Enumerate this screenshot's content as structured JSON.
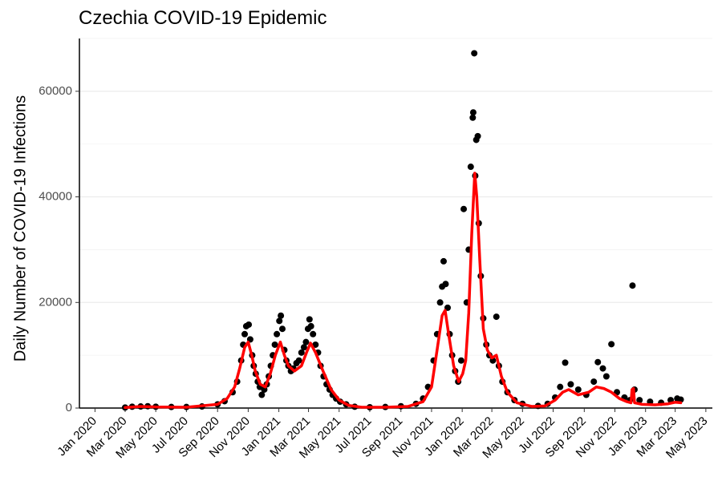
{
  "chart_data": {
    "type": "scatter",
    "title": "Czechia COVID-19 Epidemic",
    "xlabel": "",
    "ylabel": "Daily Number of COVID-19 Infections",
    "xlim": [
      "2019-12-01",
      "2023-05-14"
    ],
    "ylim": [
      0,
      70000
    ],
    "grid": "horizontal",
    "x_ticks": [
      "2020-01-01",
      "2020-03-01",
      "2020-05-01",
      "2020-07-01",
      "2020-09-01",
      "2020-11-01",
      "2021-01-01",
      "2021-03-01",
      "2021-05-01",
      "2021-07-01",
      "2021-09-01",
      "2021-11-01",
      "2022-01-01",
      "2022-03-01",
      "2022-05-01",
      "2022-07-01",
      "2022-09-01",
      "2022-11-01",
      "2023-01-01",
      "2023-03-01",
      "2023-05-01"
    ],
    "x_tick_labels": [
      "Jan 2020",
      "Mar 2020",
      "May 2020",
      "Jul 2020",
      "Sep 2020",
      "Nov 2020",
      "Jan 2021",
      "Mar 2021",
      "May 2021",
      "Jul 2021",
      "Sep 2021",
      "Nov 2021",
      "Jan 2022",
      "Mar 2022",
      "May 2022",
      "Jul 2022",
      "Sep 2022",
      "Nov 2022",
      "Jan 2023",
      "Mar 2023",
      "May 2023"
    ],
    "y_ticks": [
      0,
      20000,
      40000,
      60000
    ],
    "y_tick_labels": [
      "0",
      "20000",
      "40000",
      "60000"
    ],
    "series": [
      {
        "type": "scatter",
        "color": "#000000",
        "points": [
          [
            "2020-03-01",
            100
          ],
          [
            "2020-03-15",
            250
          ],
          [
            "2020-04-01",
            300
          ],
          [
            "2020-04-15",
            350
          ],
          [
            "2020-05-01",
            250
          ],
          [
            "2020-06-01",
            200
          ],
          [
            "2020-07-01",
            200
          ],
          [
            "2020-08-01",
            300
          ],
          [
            "2020-09-01",
            700
          ],
          [
            "2020-09-15",
            1300
          ],
          [
            "2020-10-01",
            3000
          ],
          [
            "2020-10-10",
            5000
          ],
          [
            "2020-10-18",
            9000
          ],
          [
            "2020-10-22",
            12000
          ],
          [
            "2020-10-25",
            14000
          ],
          [
            "2020-10-28",
            15500
          ],
          [
            "2020-11-02",
            15800
          ],
          [
            "2020-11-05",
            13000
          ],
          [
            "2020-11-09",
            10000
          ],
          [
            "2020-11-12",
            8000
          ],
          [
            "2020-11-16",
            6500
          ],
          [
            "2020-11-20",
            5000
          ],
          [
            "2020-11-24",
            4000
          ],
          [
            "2020-11-28",
            2500
          ],
          [
            "2020-12-03",
            3500
          ],
          [
            "2020-12-08",
            4500
          ],
          [
            "2020-12-12",
            6000
          ],
          [
            "2020-12-16",
            8000
          ],
          [
            "2020-12-20",
            10000
          ],
          [
            "2020-12-24",
            12000
          ],
          [
            "2020-12-28",
            14000
          ],
          [
            "2021-01-02",
            16500
          ],
          [
            "2021-01-05",
            17500
          ],
          [
            "2021-01-08",
            15000
          ],
          [
            "2021-01-12",
            11000
          ],
          [
            "2021-01-16",
            9000
          ],
          [
            "2021-01-20",
            8000
          ],
          [
            "2021-01-25",
            7000
          ],
          [
            "2021-01-30",
            7500
          ],
          [
            "2021-02-05",
            8500
          ],
          [
            "2021-02-10",
            9000
          ],
          [
            "2021-02-15",
            10500
          ],
          [
            "2021-02-20",
            11500
          ],
          [
            "2021-02-24",
            12500
          ],
          [
            "2021-02-28",
            15000
          ],
          [
            "2021-03-03",
            16800
          ],
          [
            "2021-03-06",
            15500
          ],
          [
            "2021-03-10",
            14000
          ],
          [
            "2021-03-15",
            12000
          ],
          [
            "2021-03-20",
            10500
          ],
          [
            "2021-03-25",
            8000
          ],
          [
            "2021-03-31",
            6000
          ],
          [
            "2021-04-06",
            4500
          ],
          [
            "2021-04-12",
            3500
          ],
          [
            "2021-04-18",
            2500
          ],
          [
            "2021-04-25",
            1800
          ],
          [
            "2021-05-03",
            1200
          ],
          [
            "2021-05-15",
            700
          ],
          [
            "2021-06-01",
            250
          ],
          [
            "2021-07-01",
            150
          ],
          [
            "2021-08-01",
            200
          ],
          [
            "2021-09-01",
            350
          ],
          [
            "2021-10-01",
            800
          ],
          [
            "2021-10-15",
            1800
          ],
          [
            "2021-10-25",
            4000
          ],
          [
            "2021-11-05",
            9000
          ],
          [
            "2021-11-12",
            14000
          ],
          [
            "2021-11-18",
            20000
          ],
          [
            "2021-11-22",
            23000
          ],
          [
            "2021-11-25",
            27800
          ],
          [
            "2021-11-29",
            23500
          ],
          [
            "2021-12-03",
            19000
          ],
          [
            "2021-12-07",
            14000
          ],
          [
            "2021-12-12",
            10000
          ],
          [
            "2021-12-18",
            7000
          ],
          [
            "2021-12-24",
            5000
          ],
          [
            "2021-12-30",
            9000
          ],
          [
            "2022-01-04",
            37700
          ],
          [
            "2022-01-10",
            20000
          ],
          [
            "2022-01-14",
            30000
          ],
          [
            "2022-01-18",
            45700
          ],
          [
            "2022-01-22",
            55000
          ],
          [
            "2022-01-23",
            56000
          ],
          [
            "2022-01-25",
            67200
          ],
          [
            "2022-01-27",
            44000
          ],
          [
            "2022-01-29",
            50800
          ],
          [
            "2022-02-01",
            51500
          ],
          [
            "2022-02-03",
            35000
          ],
          [
            "2022-02-07",
            25000
          ],
          [
            "2022-02-12",
            17000
          ],
          [
            "2022-02-18",
            12000
          ],
          [
            "2022-02-24",
            10000
          ],
          [
            "2022-03-03",
            9000
          ],
          [
            "2022-03-10",
            17300
          ],
          [
            "2022-03-15",
            8000
          ],
          [
            "2022-03-22",
            5000
          ],
          [
            "2022-04-01",
            3000
          ],
          [
            "2022-04-15",
            1500
          ],
          [
            "2022-05-01",
            800
          ],
          [
            "2022-06-01",
            400
          ],
          [
            "2022-06-20",
            800
          ],
          [
            "2022-07-05",
            2000
          ],
          [
            "2022-07-15",
            4000
          ],
          [
            "2022-07-25",
            8600
          ],
          [
            "2022-08-05",
            4500
          ],
          [
            "2022-08-20",
            3500
          ],
          [
            "2022-09-05",
            2500
          ],
          [
            "2022-09-20",
            5000
          ],
          [
            "2022-09-28",
            8700
          ],
          [
            "2022-10-08",
            7500
          ],
          [
            "2022-10-15",
            6000
          ],
          [
            "2022-10-25",
            12100
          ],
          [
            "2022-11-05",
            3000
          ],
          [
            "2022-11-20",
            2000
          ],
          [
            "2022-12-01",
            1500
          ],
          [
            "2022-12-06",
            23200
          ],
          [
            "2022-12-10",
            3500
          ],
          [
            "2022-12-20",
            1500
          ],
          [
            "2023-01-10",
            1200
          ],
          [
            "2023-02-01",
            1000
          ],
          [
            "2023-02-20",
            1500
          ],
          [
            "2023-03-05",
            1800
          ],
          [
            "2023-03-12",
            1600
          ]
        ]
      },
      {
        "type": "line",
        "color": "#ff0000",
        "points": [
          [
            "2020-03-01",
            100
          ],
          [
            "2020-04-01",
            300
          ],
          [
            "2020-05-01",
            200
          ],
          [
            "2020-07-01",
            150
          ],
          [
            "2020-09-01",
            700
          ],
          [
            "2020-09-20",
            1800
          ],
          [
            "2020-10-05",
            4000
          ],
          [
            "2020-10-15",
            7500
          ],
          [
            "2020-10-25",
            11500
          ],
          [
            "2020-11-01",
            12500
          ],
          [
            "2020-11-08",
            10000
          ],
          [
            "2020-11-15",
            7000
          ],
          [
            "2020-11-25",
            4500
          ],
          [
            "2020-12-05",
            4000
          ],
          [
            "2020-12-15",
            6500
          ],
          [
            "2020-12-25",
            10000
          ],
          [
            "2021-01-04",
            12500
          ],
          [
            "2021-01-12",
            10000
          ],
          [
            "2021-01-20",
            8000
          ],
          [
            "2021-02-01",
            7000
          ],
          [
            "2021-02-15",
            8000
          ],
          [
            "2021-02-25",
            10500
          ],
          [
            "2021-03-05",
            12300
          ],
          [
            "2021-03-15",
            10500
          ],
          [
            "2021-03-30",
            7000
          ],
          [
            "2021-04-15",
            3500
          ],
          [
            "2021-05-01",
            1500
          ],
          [
            "2021-05-20",
            500
          ],
          [
            "2021-06-15",
            150
          ],
          [
            "2021-08-01",
            150
          ],
          [
            "2021-09-15",
            300
          ],
          [
            "2021-10-15",
            1200
          ],
          [
            "2021-11-01",
            4000
          ],
          [
            "2021-11-12",
            11000
          ],
          [
            "2021-11-22",
            17500
          ],
          [
            "2021-11-28",
            18500
          ],
          [
            "2021-12-05",
            14000
          ],
          [
            "2021-12-15",
            8000
          ],
          [
            "2021-12-25",
            5000
          ],
          [
            "2022-01-02",
            6500
          ],
          [
            "2022-01-08",
            9000
          ],
          [
            "2022-01-14",
            18000
          ],
          [
            "2022-01-20",
            33000
          ],
          [
            "2022-01-26",
            44500
          ],
          [
            "2022-01-30",
            40000
          ],
          [
            "2022-02-05",
            28000
          ],
          [
            "2022-02-12",
            15000
          ],
          [
            "2022-02-20",
            11000
          ],
          [
            "2022-03-01",
            9500
          ],
          [
            "2022-03-10",
            10000
          ],
          [
            "2022-03-20",
            6000
          ],
          [
            "2022-04-01",
            3000
          ],
          [
            "2022-04-20",
            1000
          ],
          [
            "2022-05-20",
            300
          ],
          [
            "2022-06-15",
            400
          ],
          [
            "2022-07-05",
            1500
          ],
          [
            "2022-07-20",
            3000
          ],
          [
            "2022-08-01",
            3500
          ],
          [
            "2022-08-20",
            2500
          ],
          [
            "2022-09-10",
            3000
          ],
          [
            "2022-09-25",
            4000
          ],
          [
            "2022-10-10",
            3700
          ],
          [
            "2022-10-25",
            3000
          ],
          [
            "2022-11-10",
            1800
          ],
          [
            "2022-11-25",
            1200
          ],
          [
            "2022-12-03",
            1000
          ],
          [
            "2022-12-05",
            3500
          ],
          [
            "2022-12-08",
            3700
          ],
          [
            "2022-12-10",
            1000
          ],
          [
            "2022-12-25",
            700
          ],
          [
            "2023-01-20",
            600
          ],
          [
            "2023-02-15",
            800
          ],
          [
            "2023-03-01",
            1100
          ],
          [
            "2023-03-12",
            1000
          ]
        ]
      }
    ]
  }
}
